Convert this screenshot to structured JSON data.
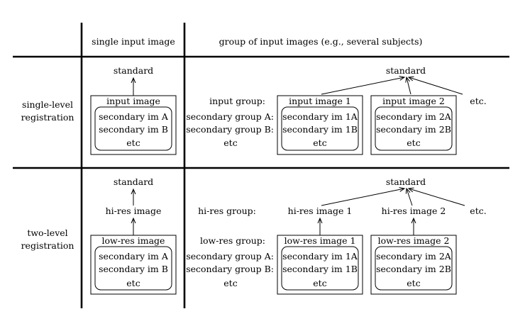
{
  "headers": {
    "col_single": "single input image",
    "col_group": "group of input images (e.g., several subjects)"
  },
  "rows": {
    "single_level": [
      "single-level",
      "registration"
    ],
    "two_level": [
      "two-level",
      "registration"
    ]
  },
  "single_level": {
    "standard": "standard",
    "single_box": {
      "title": "input image",
      "lines": [
        "secondary im A",
        "secondary im B",
        "etc"
      ]
    },
    "group_labels": {
      "input_group": "input group:",
      "secondary_a": "secondary group A:",
      "secondary_b": "secondary group B:",
      "etc": "etc"
    },
    "box1": {
      "title": "input image 1",
      "lines": [
        "secondary im 1A",
        "secondary im 1B",
        "etc"
      ]
    },
    "box2": {
      "title": "input image 2",
      "lines": [
        "secondary im 2A",
        "secondary im 2B",
        "etc"
      ]
    },
    "etc_top": "etc."
  },
  "two_level": {
    "standard": "standard",
    "hires": "hi-res image",
    "single_box": {
      "title": "low-res image",
      "lines": [
        "secondary im A",
        "secondary im B",
        "etc"
      ]
    },
    "group_labels": {
      "hires_group": "hi-res group:",
      "lowres_group": "low-res group:",
      "secondary_a": "secondary group A:",
      "secondary_b": "secondary group B:",
      "etc": "etc"
    },
    "hires1": "hi-res image 1",
    "hires2": "hi-res image 2",
    "etc_top": "etc.",
    "box1": {
      "title": "low-res image 1",
      "lines": [
        "secondary im 1A",
        "secondary im 1B",
        "etc"
      ]
    },
    "box2": {
      "title": "low-res image 2",
      "lines": [
        "secondary im 2A",
        "secondary im 2B",
        "etc"
      ]
    }
  }
}
